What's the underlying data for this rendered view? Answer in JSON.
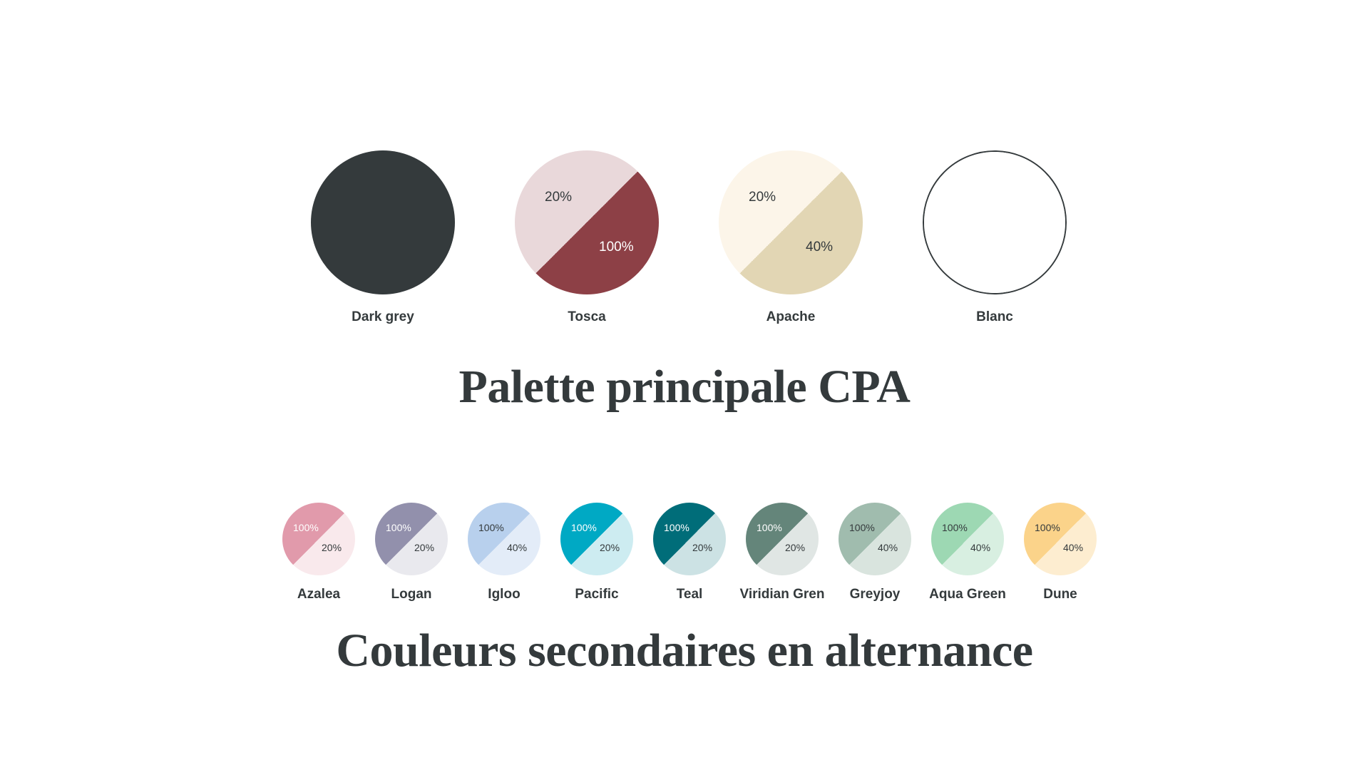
{
  "main_palette": {
    "title": "Palette principale CPA",
    "swatches": [
      {
        "name": "Dark grey",
        "type": "solid",
        "color": "#343a3c"
      },
      {
        "name": "Tosca",
        "type": "split",
        "color_a": "#e9d8da",
        "color_b": "#8d4046",
        "pct_a": "20%",
        "pct_b": "100%",
        "text_a": "#343a3c",
        "text_b": "#ffffff"
      },
      {
        "name": "Apache",
        "type": "split",
        "color_a": "#fcf5e9",
        "color_b": "#e2d6b4",
        "pct_a": "20%",
        "pct_b": "40%",
        "text_a": "#343a3c",
        "text_b": "#343a3c"
      },
      {
        "name": "Blanc",
        "type": "outline",
        "color": "#ffffff",
        "border": "#343a3c"
      }
    ]
  },
  "secondary_palette": {
    "title": "Couleurs secondaires en alternance",
    "swatches": [
      {
        "name": "Azalea",
        "color_a": "#e19aab",
        "color_b": "#f9e9ec",
        "pct_a": "100%",
        "pct_b": "20%",
        "text_a": "#ffffff",
        "text_b": "#343a3c"
      },
      {
        "name": "Logan",
        "color_a": "#9290ac",
        "color_b": "#e9e9ee",
        "pct_a": "100%",
        "pct_b": "20%",
        "text_a": "#ffffff",
        "text_b": "#343a3c"
      },
      {
        "name": "Igloo",
        "color_a": "#b8d0ed",
        "color_b": "#e3ecf8",
        "pct_a": "100%",
        "pct_b": "40%",
        "text_a": "#343a3c",
        "text_b": "#343a3c"
      },
      {
        "name": "Pacific",
        "color_a": "#00a9c4",
        "color_b": "#cdecf1",
        "pct_a": "100%",
        "pct_b": "20%",
        "text_a": "#ffffff",
        "text_b": "#343a3c"
      },
      {
        "name": "Teal",
        "color_a": "#006d79",
        "color_b": "#cce2e4",
        "pct_a": "100%",
        "pct_b": "20%",
        "text_a": "#ffffff",
        "text_b": "#343a3c"
      },
      {
        "name": "Viridian Gren",
        "color_a": "#64857a",
        "color_b": "#e0e6e4",
        "pct_a": "100%",
        "pct_b": "20%",
        "text_a": "#ffffff",
        "text_b": "#343a3c"
      },
      {
        "name": "Greyjoy",
        "color_a": "#a0bcae",
        "color_b": "#d9e4de",
        "pct_a": "100%",
        "pct_b": "40%",
        "text_a": "#343a3c",
        "text_b": "#343a3c"
      },
      {
        "name": "Aqua Green",
        "color_a": "#9dd8b3",
        "color_b": "#d8efe1",
        "pct_a": "100%",
        "pct_b": "40%",
        "text_a": "#343a3c",
        "text_b": "#343a3c"
      },
      {
        "name": "Dune",
        "color_a": "#fbd38a",
        "color_b": "#fdedd0",
        "pct_a": "100%",
        "pct_b": "40%",
        "text_a": "#343a3c",
        "text_b": "#343a3c"
      }
    ]
  }
}
